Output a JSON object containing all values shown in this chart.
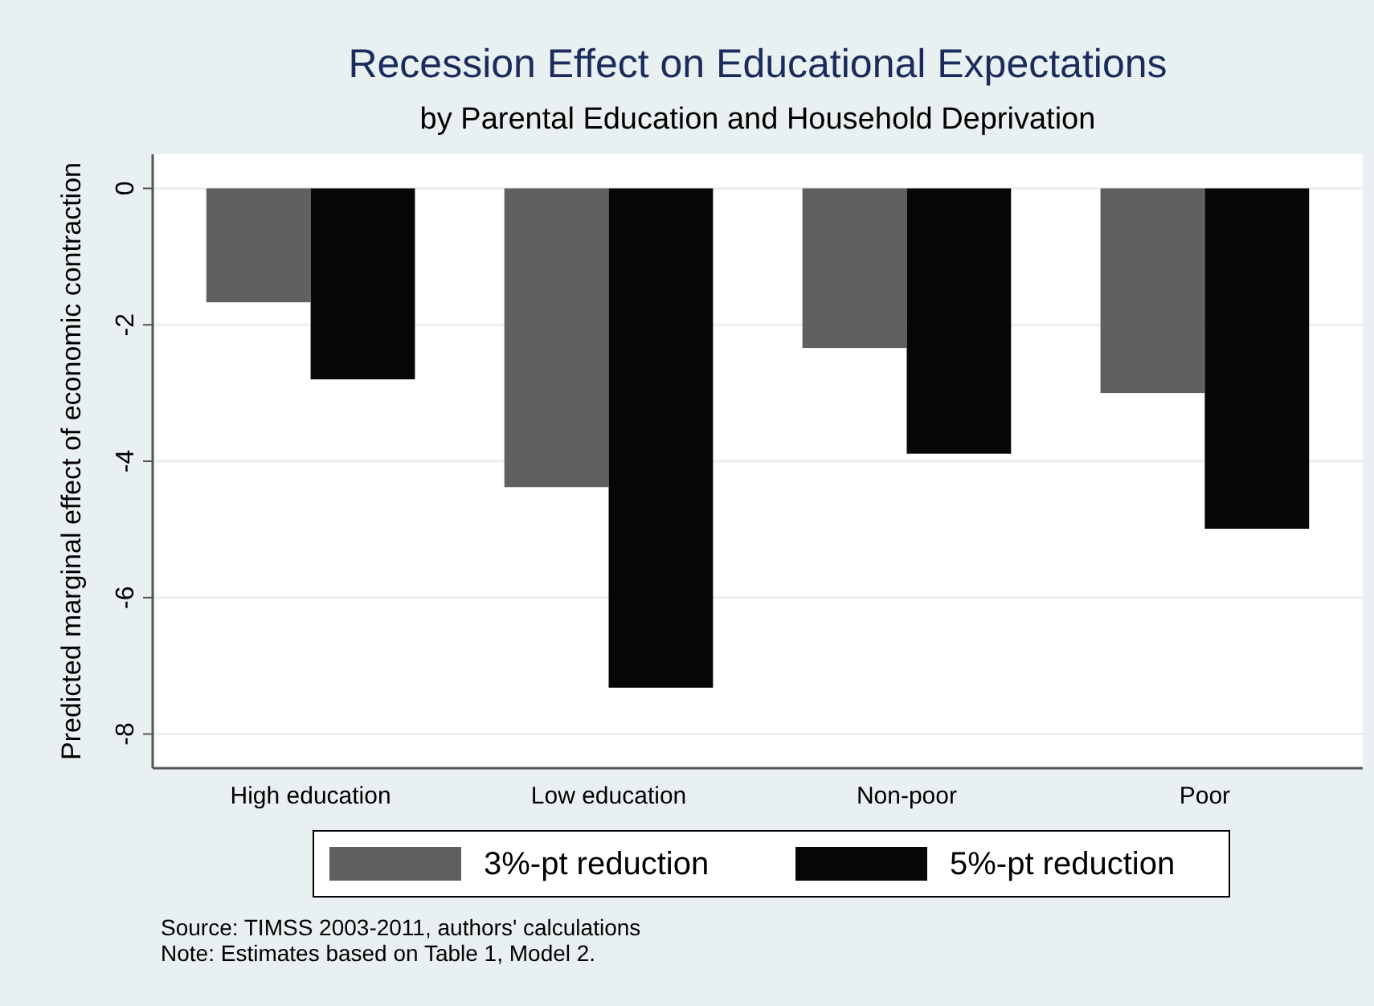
{
  "chart_data": {
    "type": "bar",
    "title": "Recession Effect on Educational Expectations",
    "subtitle": "by Parental Education and Household Deprivation",
    "ylabel": "Predicted marginal effect of economic contraction",
    "categories": [
      "High education",
      "Low education",
      "Non-poor",
      "Poor"
    ],
    "series": [
      {
        "name": "3%-pt reduction",
        "color": "#5f605f",
        "values": [
          -1.67,
          -4.38,
          -2.34,
          -3.0
        ]
      },
      {
        "name": "5%-pt reduction",
        "color": "#060606",
        "values": [
          -2.8,
          -7.32,
          -3.89,
          -4.99
        ]
      }
    ],
    "ylim": [
      -8.5,
      0.5
    ],
    "yticks": [
      0,
      -2,
      -4,
      -6,
      -8
    ],
    "grid": "y",
    "legend": "bottom",
    "annotations": [
      "Source: TIMSS 2003-2011, authors' calculations",
      "Note: Estimates based on Table 1, Model 2."
    ]
  }
}
